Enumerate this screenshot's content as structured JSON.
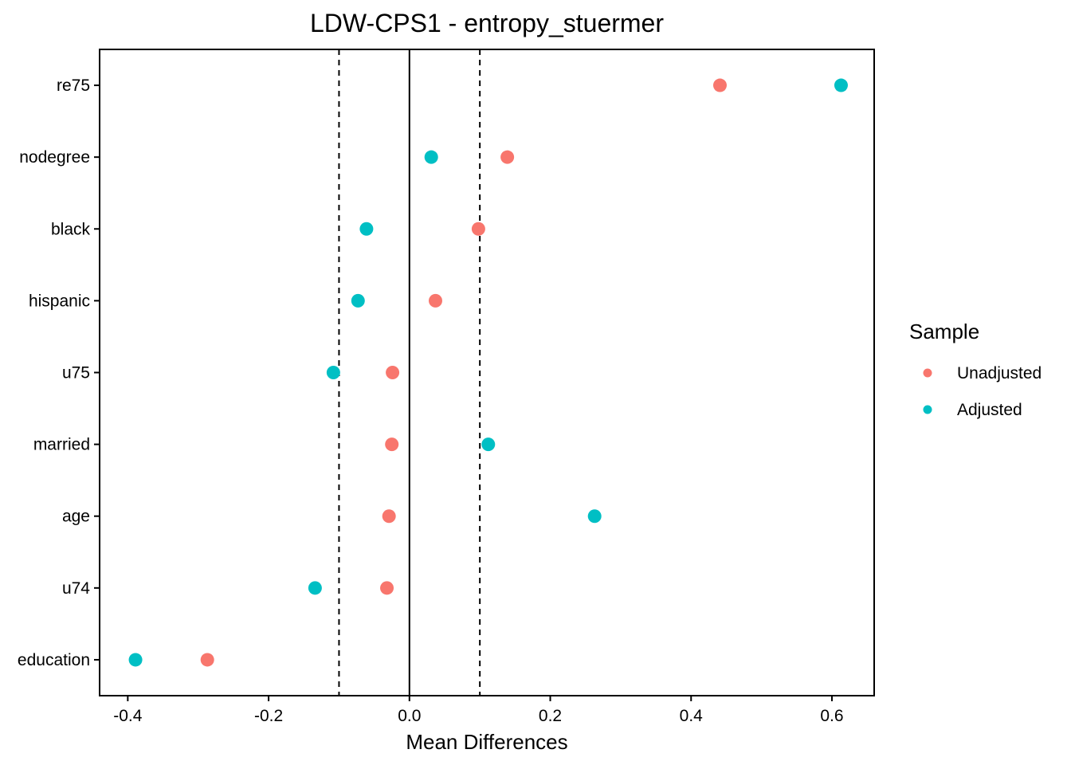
{
  "chart_data": {
    "type": "scatter",
    "title": "LDW-CPS1 - entropy_stuermer",
    "xlabel": "Mean Differences",
    "ylabel": "",
    "xlim": [
      -0.44,
      0.66
    ],
    "xticks": [
      -0.4,
      -0.2,
      0.0,
      0.2,
      0.4,
      0.6
    ],
    "xtick_labels": [
      "-0.4",
      "-0.2",
      "0.0",
      "0.2",
      "0.4",
      "0.6"
    ],
    "reference_lines": [
      {
        "x": 0,
        "style": "solid"
      },
      {
        "x": -0.1,
        "style": "dashed"
      },
      {
        "x": 0.1,
        "style": "dashed"
      }
    ],
    "categories": [
      "re75",
      "nodegree",
      "black",
      "hispanic",
      "u75",
      "married",
      "age",
      "u74",
      "education"
    ],
    "series": [
      {
        "name": "Unadjusted",
        "color": "#f8766d",
        "values": [
          0.441,
          0.139,
          0.098,
          0.037,
          -0.024,
          -0.025,
          -0.029,
          -0.032,
          -0.287
        ]
      },
      {
        "name": "Adjusted",
        "color": "#00bfc4",
        "values": [
          0.613,
          0.031,
          -0.061,
          -0.073,
          -0.108,
          0.112,
          0.263,
          -0.134,
          -0.389
        ]
      }
    ],
    "legend": {
      "title": "Sample",
      "position": "right"
    },
    "grid": false
  }
}
